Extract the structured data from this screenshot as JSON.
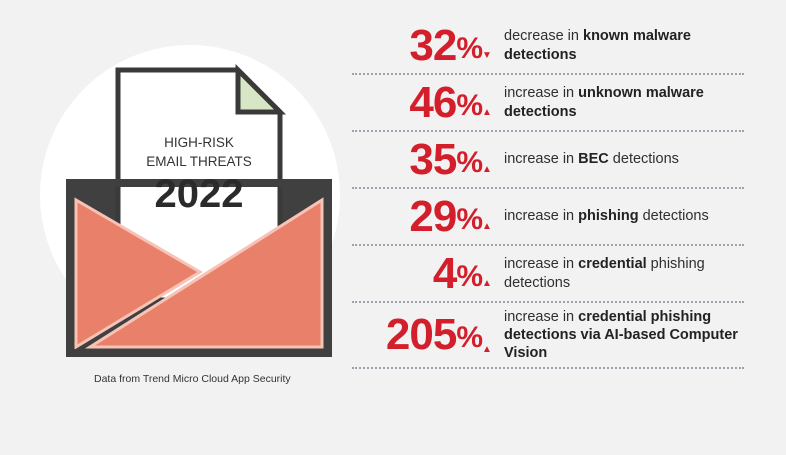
{
  "illustration": {
    "line1": "HIGH-RISK",
    "line2": "EMAIL THREATS",
    "year": "2022"
  },
  "source_note": "Data from Trend Micro Cloud App Security",
  "stats": [
    {
      "value": "32",
      "unit": "%",
      "arrow": "▼",
      "prefix": "decrease in ",
      "bold": "known malware detections",
      "suffix": ""
    },
    {
      "value": "46",
      "unit": "%",
      "arrow": "▲",
      "prefix": "increase in ",
      "bold": "unknown malware detections",
      "suffix": ""
    },
    {
      "value": "35",
      "unit": "%",
      "arrow": "▲",
      "prefix": "increase in ",
      "bold": "BEC",
      "suffix": " detections"
    },
    {
      "value": "29",
      "unit": "%",
      "arrow": "▲",
      "prefix": "increase in ",
      "bold": "phishing",
      "suffix": " detections"
    },
    {
      "value": "4",
      "unit": "%",
      "arrow": "▲",
      "prefix": "increase in ",
      "bold": "credential",
      "suffix": " phishing detections"
    },
    {
      "value": "205",
      "unit": "%",
      "arrow": "▲",
      "prefix": "increase in ",
      "bold": "credential phishing detections via AI-based Computer Vision",
      "suffix": ""
    }
  ],
  "colors": {
    "accent": "#d21f2b",
    "envelope": "#e8806a",
    "envelope_dark": "#404040",
    "paper_fold": "#d7e6c4"
  }
}
